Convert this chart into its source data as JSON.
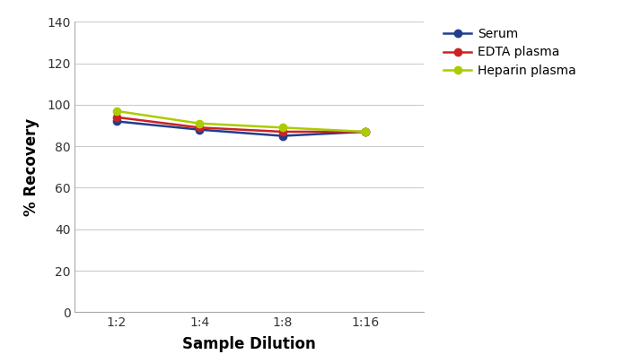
{
  "x_labels": [
    "1:2",
    "1:4",
    "1:8",
    "1:16"
  ],
  "x_positions": [
    1,
    2,
    3,
    4
  ],
  "series": [
    {
      "name": "Serum",
      "color": "#1f3e8c",
      "marker": "o",
      "values": [
        92,
        88,
        85,
        87
      ]
    },
    {
      "name": "EDTA plasma",
      "color": "#cc2222",
      "marker": "o",
      "values": [
        94,
        89,
        87,
        87
      ]
    },
    {
      "name": "Heparin plasma",
      "color": "#aacc00",
      "marker": "o",
      "values": [
        97,
        91,
        89,
        87
      ]
    }
  ],
  "ylabel": "% Recovery",
  "xlabel": "Sample Dilution",
  "ylim": [
    0,
    140
  ],
  "yticks": [
    0,
    20,
    40,
    60,
    80,
    100,
    120,
    140
  ],
  "background_color": "#ffffff",
  "grid_color": "#cccccc",
  "marker_size": 6,
  "line_width": 1.8,
  "tick_fontsize": 10,
  "label_fontsize": 12,
  "legend_fontsize": 10
}
